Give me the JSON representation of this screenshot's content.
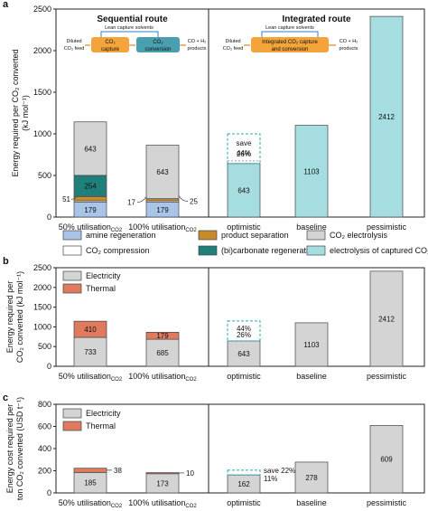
{
  "panels": [
    {
      "letter": "a",
      "ylabel_lines": [
        "Energy required per CO₂ converted",
        "(kJ mol⁻¹)"
      ],
      "yticks": [
        0,
        500,
        1000,
        1500,
        2000,
        2500
      ],
      "ylim": [
        0,
        2500
      ],
      "section_titles": [
        "Sequential route",
        "Integrated route"
      ],
      "categories": [
        "50% utilisation",
        "100% utilisation",
        "optimistic",
        "baseline",
        "pessimistic"
      ],
      "category_subscripts": [
        "CO2",
        "CO2",
        "",
        "",
        ""
      ]
    },
    {
      "letter": "b",
      "ylabel_lines": [
        "Energy required per",
        "CO₂ converted (kJ mol⁻¹)"
      ],
      "yticks": [
        0,
        500,
        1000,
        1500,
        2000,
        2500
      ],
      "ylim": [
        0,
        2500
      ],
      "categories": [
        "50% utilisation",
        "100% utilisation",
        "optimistic",
        "baseline",
        "pessimistic"
      ],
      "category_subscripts": [
        "CO2",
        "CO2",
        "",
        "",
        ""
      ]
    },
    {
      "letter": "c",
      "ylabel_lines": [
        "Energy cost required per",
        "ton CO₂ converted (USD t⁻¹)"
      ],
      "yticks": [
        0,
        200,
        400,
        600,
        800
      ],
      "ylim": [
        0,
        800
      ],
      "categories": [
        "50% utilisation",
        "100% utilisation",
        "optimistic",
        "baseline",
        "pessimistic"
      ],
      "category_subscripts": [
        "CO2",
        "CO2",
        "",
        "",
        ""
      ]
    }
  ],
  "legend_a": [
    {
      "label": "amine regeneration",
      "color": "#a9c4e6"
    },
    {
      "label": "product separation",
      "color": "#c98a2c"
    },
    {
      "label": "CO₂ electrolysis",
      "color": "#d4d4d4"
    },
    {
      "label": "CO₂ compression",
      "color": "#ffffff"
    },
    {
      "label": "(bi)carbonate regeneration",
      "color": "#1f7f7b"
    },
    {
      "label": "electrolysis of captured CO₂",
      "color": "#a6dde0"
    }
  ],
  "legend_bc": [
    {
      "label": "Electricity",
      "color": "#d4d4d4"
    },
    {
      "label": "Thermal",
      "color": "#e07a5f"
    }
  ],
  "schemes": {
    "sequential": {
      "lean_label": "Lean capture solvents",
      "feed_label": [
        "Diluted",
        "CO₂ feed"
      ],
      "box1": [
        "CO₂",
        "capture"
      ],
      "box2": [
        "CO₂",
        "conversion"
      ],
      "products": [
        "CO + H₂",
        "products"
      ]
    },
    "integrated": {
      "lean_label": "Lean capture solvents",
      "feed_label": [
        "Diluted",
        "CO₂ feed"
      ],
      "box": [
        "Integrated CO₂ capture",
        "and conversion"
      ],
      "products": [
        "CO + H₂",
        "products"
      ]
    }
  },
  "chart_data": [
    {
      "panel": "a",
      "type": "bar",
      "stacked": true,
      "categories": [
        "50% utilisation CO2",
        "100% utilisation CO2",
        "optimistic",
        "baseline",
        "pessimistic"
      ],
      "ylabel": "Energy required per CO₂ converted (kJ mol⁻¹)",
      "ylim": [
        0,
        2500
      ],
      "series": [
        {
          "name": "amine regeneration",
          "values": [
            179,
            179,
            0,
            0,
            0
          ]
        },
        {
          "name": "CO₂ compression",
          "values": [
            17,
            17,
            0,
            0,
            0
          ]
        },
        {
          "name": "product separation",
          "values": [
            51,
            25,
            0,
            0,
            0
          ]
        },
        {
          "name": "(bi)carbonate regeneration",
          "values": [
            254,
            0,
            0,
            0,
            0
          ]
        },
        {
          "name": "CO₂ electrolysis",
          "values": [
            643,
            643,
            0,
            0,
            0
          ]
        },
        {
          "name": "electrolysis of captured CO₂",
          "values": [
            0,
            0,
            643,
            1103,
            2412
          ]
        }
      ],
      "data_labels": [
        {
          "bar": 0,
          "segment": "amine regeneration",
          "text": "179"
        },
        {
          "bar": 0,
          "segment": "(bi)carbonate regeneration",
          "text": "254"
        },
        {
          "bar": 0,
          "segment": "CO₂ electrolysis",
          "text": "643"
        },
        {
          "bar": 1,
          "segment": "amine regeneration",
          "text": "179"
        },
        {
          "bar": 1,
          "segment": "CO₂ electrolysis",
          "text": "643"
        },
        {
          "bar": 2,
          "segment": "electrolysis of captured CO₂",
          "text": "643"
        },
        {
          "bar": 3,
          "segment": "electrolysis of captured CO₂",
          "text": "1103"
        },
        {
          "bar": 4,
          "segment": "electrolysis of captured CO₂",
          "text": "2412"
        }
      ],
      "side_labels": {
        "bar0": [
          "51"
        ],
        "bar1": [
          "17",
          "25"
        ]
      },
      "annotations": {
        "saving_top": 1000,
        "saving_lines": [
          "save",
          "44%"
        ],
        "mid_label_value": 26,
        "mid_label": "26%"
      }
    },
    {
      "panel": "b",
      "type": "bar",
      "stacked": true,
      "categories": [
        "50% utilisation CO2",
        "100% utilisation CO2",
        "optimistic",
        "baseline",
        "pessimistic"
      ],
      "ylabel": "Energy required per CO₂ converted (kJ mol⁻¹)",
      "ylim": [
        0,
        2500
      ],
      "series": [
        {
          "name": "Electricity",
          "values": [
            733,
            685,
            643,
            1103,
            2412
          ]
        },
        {
          "name": "Thermal",
          "values": [
            410,
            179,
            0,
            0,
            0
          ]
        }
      ],
      "annotations": {
        "saving_top": 1150,
        "saving_lines": [
          "44%"
        ],
        "mid_label": "26%"
      }
    },
    {
      "panel": "c",
      "type": "bar",
      "stacked": true,
      "categories": [
        "50% utilisation CO2",
        "100% utilisation CO2",
        "optimistic",
        "baseline",
        "pessimistic"
      ],
      "ylabel": "Energy cost required per ton CO₂ converted (USD t⁻¹)",
      "ylim": [
        0,
        800
      ],
      "series": [
        {
          "name": "Electricity",
          "values": [
            185,
            173,
            162,
            278,
            609
          ]
        },
        {
          "name": "Thermal",
          "values": [
            38,
            10,
            0,
            0,
            0
          ]
        }
      ],
      "annotations": {
        "saving_top": 205,
        "saving_label": "save 22%",
        "mid_label": "11%"
      }
    }
  ]
}
